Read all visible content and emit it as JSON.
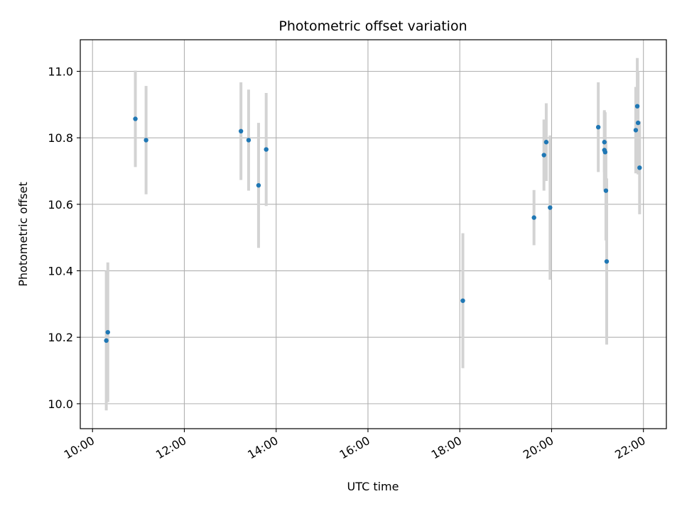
{
  "chart_data": {
    "type": "scatter",
    "title": "Photometric offset variation",
    "xlabel": "UTC time",
    "ylabel": "Photometric offset",
    "x_axis_kind": "time",
    "xlim": [
      "09:44",
      "22:30"
    ],
    "ylim": [
      9.925,
      11.095
    ],
    "x_ticks": [
      "10:00",
      "12:00",
      "14:00",
      "16:00",
      "18:00",
      "20:00",
      "22:00"
    ],
    "y_ticks": [
      "10.0",
      "10.2",
      "10.4",
      "10.6",
      "10.8",
      "11.0"
    ],
    "grid": true,
    "legend": "none",
    "colors": {
      "point": "#1f77b4",
      "errorbar": "#d3d3d3",
      "grid": "#b0b0b0"
    },
    "points": [
      {
        "x": "10:18",
        "y": 10.19,
        "yerr": 0.21
      },
      {
        "x": "10:20",
        "y": 10.215,
        "yerr": 0.21
      },
      {
        "x": "10:56",
        "y": 10.857,
        "yerr": 0.145
      },
      {
        "x": "11:10",
        "y": 10.793,
        "yerr": 0.163
      },
      {
        "x": "13:14",
        "y": 10.82,
        "yerr": 0.147
      },
      {
        "x": "13:24",
        "y": 10.793,
        "yerr": 0.152
      },
      {
        "x": "13:37",
        "y": 10.657,
        "yerr": 0.188
      },
      {
        "x": "13:47",
        "y": 10.765,
        "yerr": 0.17
      },
      {
        "x": "18:04",
        "y": 10.31,
        "yerr": 0.203
      },
      {
        "x": "19:37",
        "y": 10.56,
        "yerr": 0.083
      },
      {
        "x": "19:50",
        "y": 10.748,
        "yerr": 0.107
      },
      {
        "x": "19:53",
        "y": 10.787,
        "yerr": 0.117
      },
      {
        "x": "19:58",
        "y": 10.59,
        "yerr": 0.217
      },
      {
        "x": "21:01",
        "y": 10.832,
        "yerr": 0.135
      },
      {
        "x": "21:09",
        "y": 10.787,
        "yerr": 0.092
      },
      {
        "x": "21:09",
        "y": 10.763,
        "yerr": 0.12
      },
      {
        "x": "21:10",
        "y": 10.757,
        "yerr": 0.12
      },
      {
        "x": "21:11",
        "y": 10.641,
        "yerr": 0.15
      },
      {
        "x": "21:12",
        "y": 10.428,
        "yerr": 0.25
      },
      {
        "x": "21:50",
        "y": 10.823,
        "yerr": 0.13
      },
      {
        "x": "21:52",
        "y": 10.895,
        "yerr": 0.145
      },
      {
        "x": "21:53",
        "y": 10.845,
        "yerr": 0.155
      },
      {
        "x": "21:55",
        "y": 10.71,
        "yerr": 0.14
      }
    ]
  }
}
